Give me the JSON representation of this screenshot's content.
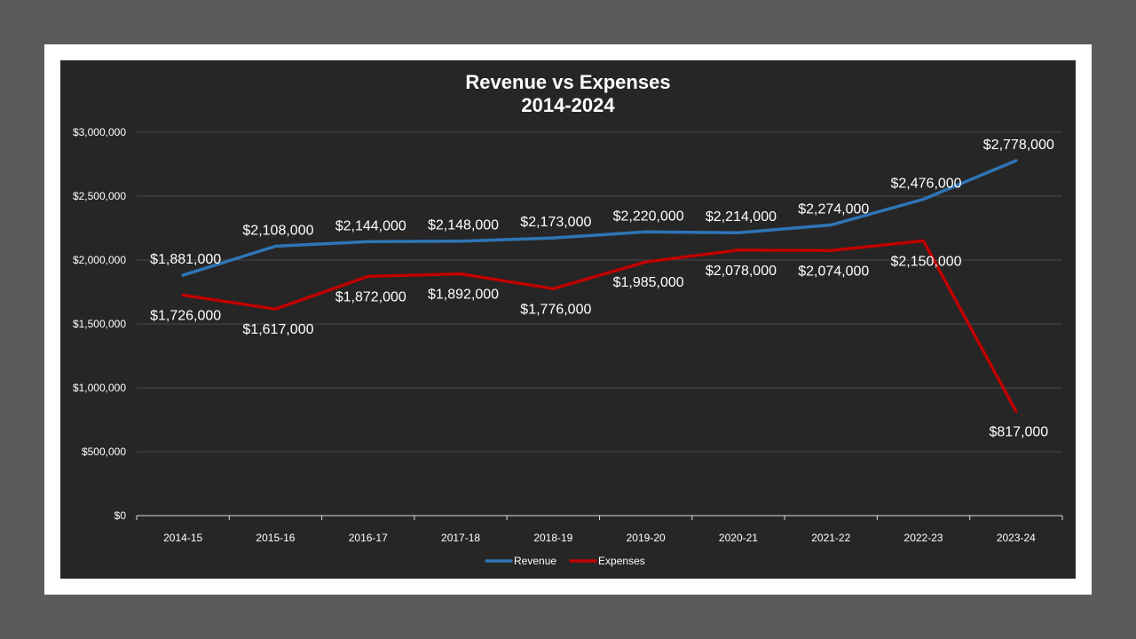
{
  "chart_data": {
    "type": "line",
    "title": "Revenue vs Expenses",
    "subtitle": "2014-2024",
    "categories": [
      "2014-15",
      "2015-16",
      "2016-17",
      "2017-18",
      "2018-19",
      "2019-20",
      "2020-21",
      "2021-22",
      "2022-23",
      "2023-24"
    ],
    "series": [
      {
        "name": "Revenue",
        "color": "#2e75b6",
        "values": [
          1881000,
          2108000,
          2144000,
          2148000,
          2173000,
          2220000,
          2214000,
          2274000,
          2476000,
          2778000
        ],
        "labels": [
          "$1,881,000",
          "$2,108,000",
          "$2,144,000",
          "$2,148,000",
          "$2,173,000",
          "$2,220,000",
          "$2,214,000",
          "$2,274,000",
          "$2,476,000",
          "$2,778,000"
        ]
      },
      {
        "name": "Expenses",
        "color": "#c00000",
        "values": [
          1726000,
          1617000,
          1872000,
          1892000,
          1776000,
          1985000,
          2078000,
          2074000,
          2150000,
          817000
        ],
        "labels": [
          "$1,726,000",
          "$1,617,000",
          "$1,872,000",
          "$1,892,000",
          "$1,776,000",
          "$1,985,000",
          "$2,078,000",
          "$2,074,000",
          "$2,150,000",
          "$817,000"
        ]
      }
    ],
    "ylim": [
      0,
      3000000
    ],
    "yticks": [
      0,
      500000,
      1000000,
      1500000,
      2000000,
      2500000,
      3000000
    ],
    "ytick_labels": [
      "$0",
      "$500,000",
      "$1,000,000",
      "$1,500,000",
      "$2,000,000",
      "$2,500,000",
      "$3,000,000"
    ],
    "xlabel": "",
    "ylabel": "",
    "grid": true,
    "legend_position": "bottom"
  }
}
